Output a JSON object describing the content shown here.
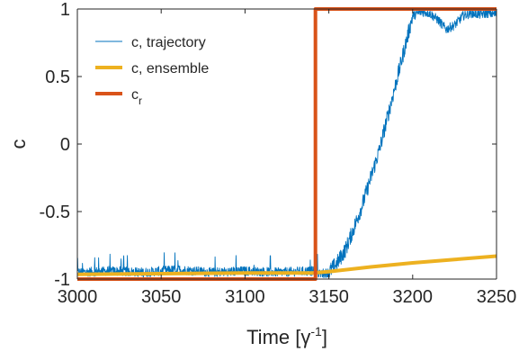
{
  "chart_data": {
    "type": "line",
    "title": "",
    "xlabel": "Time [γ",
    "xlabel_sup": "-1",
    "xlabel_close": "]",
    "ylabel": "c",
    "xlim": [
      3000,
      3250
    ],
    "ylim": [
      -1,
      1
    ],
    "xticks": [
      3000,
      3050,
      3100,
      3150,
      3200,
      3250
    ],
    "xtick_labels": [
      "3000",
      "3050",
      "3100",
      "3150",
      "3200",
      "3250"
    ],
    "yticks": [
      -1,
      -0.5,
      0,
      0.5,
      1
    ],
    "ytick_labels": [
      "-1",
      "-0.5",
      "0",
      "0.5",
      "1"
    ],
    "grid": false,
    "legend_placement": "top-left",
    "series": [
      {
        "name": "c, trajectory",
        "legend_label": "c, trajectory",
        "color": "#0072BD",
        "style": "noisy",
        "x": [
          3000,
          3020,
          3040,
          3060,
          3080,
          3100,
          3120,
          3140,
          3145,
          3150,
          3155,
          3160,
          3165,
          3170,
          3175,
          3180,
          3185,
          3190,
          3195,
          3200,
          3205,
          3210,
          3215,
          3220,
          3225,
          3230,
          3235,
          3240,
          3245,
          3250
        ],
        "y": [
          -0.95,
          -0.94,
          -0.95,
          -0.93,
          -0.95,
          -0.94,
          -0.95,
          -0.94,
          -0.96,
          -0.95,
          -0.88,
          -0.78,
          -0.62,
          -0.45,
          -0.25,
          -0.05,
          0.2,
          0.45,
          0.7,
          0.95,
          0.98,
          0.97,
          0.92,
          0.85,
          0.88,
          0.95,
          0.97,
          0.96,
          0.97,
          0.96
        ]
      },
      {
        "name": "c, ensemble",
        "legend_label": "c, ensemble",
        "color": "#EDB120",
        "style": "smooth",
        "x": [
          3000,
          3050,
          3100,
          3140,
          3150,
          3175,
          3200,
          3225,
          3250
        ],
        "y": [
          -0.965,
          -0.96,
          -0.955,
          -0.955,
          -0.945,
          -0.91,
          -0.88,
          -0.855,
          -0.83
        ]
      },
      {
        "name": "c_r",
        "legend_label": "c",
        "legend_sub": "r",
        "color": "#D95319",
        "style": "step",
        "x": [
          3000,
          3142,
          3142,
          3250
        ],
        "y": [
          -1,
          -1,
          1,
          1
        ]
      }
    ]
  }
}
